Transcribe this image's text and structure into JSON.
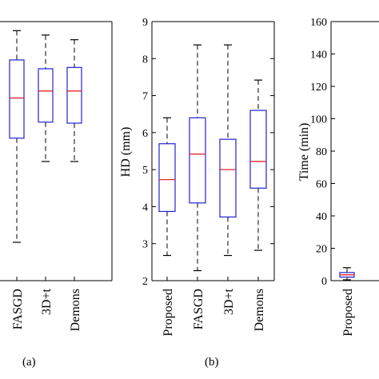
{
  "chart_data": [
    {
      "type": "box",
      "panel_label": "(a)",
      "xlabel": "",
      "ylabel": "",
      "categories": [
        "FASGD",
        "3D+t",
        "Demons"
      ],
      "partially_cropped": true,
      "ylim": [
        0,
        1
      ],
      "yticks": [],
      "boxes": [
        {
          "category": "FASGD",
          "whisker_low": 0.148,
          "q1": 0.55,
          "median": 0.705,
          "q3": 0.852,
          "whisker_high": 0.965
        },
        {
          "category": "3D+t",
          "whisker_low": 0.46,
          "q1": 0.612,
          "median": 0.732,
          "q3": 0.818,
          "whisker_high": 0.948
        },
        {
          "category": "Demons",
          "whisker_low": 0.46,
          "q1": 0.608,
          "median": 0.732,
          "q3": 0.823,
          "whisker_high": 0.93
        }
      ]
    },
    {
      "type": "box",
      "panel_label": "(b)",
      "ylabel": "HD (mm)",
      "xlabel": "",
      "categories": [
        "Proposed",
        "FASGD",
        "3D+t",
        "Demons"
      ],
      "ylim": [
        2,
        9
      ],
      "yticks": [
        "2",
        "3",
        "4",
        "5",
        "6",
        "7",
        "8",
        "9"
      ],
      "boxes": [
        {
          "category": "Proposed",
          "whisker_low": 2.68,
          "q1": 3.87,
          "median": 4.73,
          "q3": 5.7,
          "whisker_high": 6.4
        },
        {
          "category": "FASGD",
          "whisker_low": 2.27,
          "q1": 4.1,
          "median": 5.42,
          "q3": 6.4,
          "whisker_high": 8.37
        },
        {
          "category": "3D+t",
          "whisker_low": 2.68,
          "q1": 3.72,
          "median": 5.0,
          "q3": 5.82,
          "whisker_high": 8.37
        },
        {
          "category": "Demons",
          "whisker_low": 2.82,
          "q1": 4.5,
          "median": 5.22,
          "q3": 6.6,
          "whisker_high": 7.42
        }
      ]
    },
    {
      "type": "box",
      "panel_label": "",
      "ylabel": "Time (min)",
      "xlabel": "",
      "categories": [
        "Proposed"
      ],
      "partially_cropped": true,
      "ylim": [
        0,
        160
      ],
      "yticks": [
        "0",
        "20",
        "40",
        "60",
        "80",
        "100",
        "120",
        "140",
        "160"
      ],
      "boxes": [
        {
          "category": "Proposed",
          "whisker_low": 0.5,
          "q1": 2.2,
          "median": 3.6,
          "q3": 5.0,
          "whisker_high": 8.0
        }
      ]
    }
  ]
}
